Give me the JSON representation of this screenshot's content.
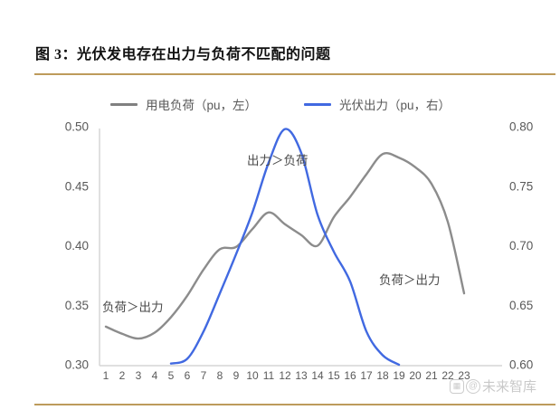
{
  "figure": {
    "title": "图 3：光伏发电存在出力与负荷不匹配的问题",
    "accent_color": "#bd9b5b"
  },
  "legend": [
    {
      "label": "用电负荷（pu，左）",
      "color": "#808080"
    },
    {
      "label": "光伏出力（pu，右）",
      "color": "#4169e1"
    }
  ],
  "annotations": {
    "center": "出力＞负荷",
    "left": "负荷＞出力",
    "right": "负荷＞出力"
  },
  "watermark": {
    "at": "@",
    "grid_glyph": "▦",
    "text": "未来智库"
  },
  "chart_data": {
    "type": "line",
    "title": "光伏发电存在出力与负荷不匹配的问题",
    "x": [
      1,
      2,
      3,
      4,
      5,
      6,
      7,
      8,
      9,
      10,
      11,
      12,
      13,
      14,
      15,
      16,
      17,
      18,
      19,
      20,
      21,
      22,
      23
    ],
    "xlabel": "",
    "grid": false,
    "legend_position": "top",
    "left_axis": {
      "ticks": [
        "0.50",
        "0.45",
        "0.40",
        "0.35",
        "0.30"
      ],
      "range": [
        0.3,
        0.5
      ]
    },
    "right_axis": {
      "ticks": [
        "0.80",
        "0.75",
        "0.70",
        "0.65",
        "0.60"
      ],
      "range": [
        0.6,
        0.8
      ]
    },
    "series": [
      {
        "name": "用电负荷（pu，左）",
        "axis": "left",
        "color": "#8c8c8c",
        "x_start": 1,
        "values": [
          0.332,
          0.326,
          0.322,
          0.327,
          0.34,
          0.358,
          0.38,
          0.397,
          0.399,
          0.414,
          0.428,
          0.418,
          0.409,
          0.4,
          0.424,
          0.441,
          0.46,
          0.477,
          0.474,
          0.466,
          0.452,
          0.42,
          0.36
        ]
      },
      {
        "name": "光伏出力（pu，右）",
        "axis": "right",
        "color": "#4169e1",
        "x_start": 5,
        "values": [
          0.601,
          0.605,
          0.628,
          0.66,
          0.693,
          0.728,
          0.77,
          0.798,
          0.778,
          0.726,
          0.695,
          0.67,
          0.628,
          0.608,
          0.6
        ]
      }
    ]
  }
}
